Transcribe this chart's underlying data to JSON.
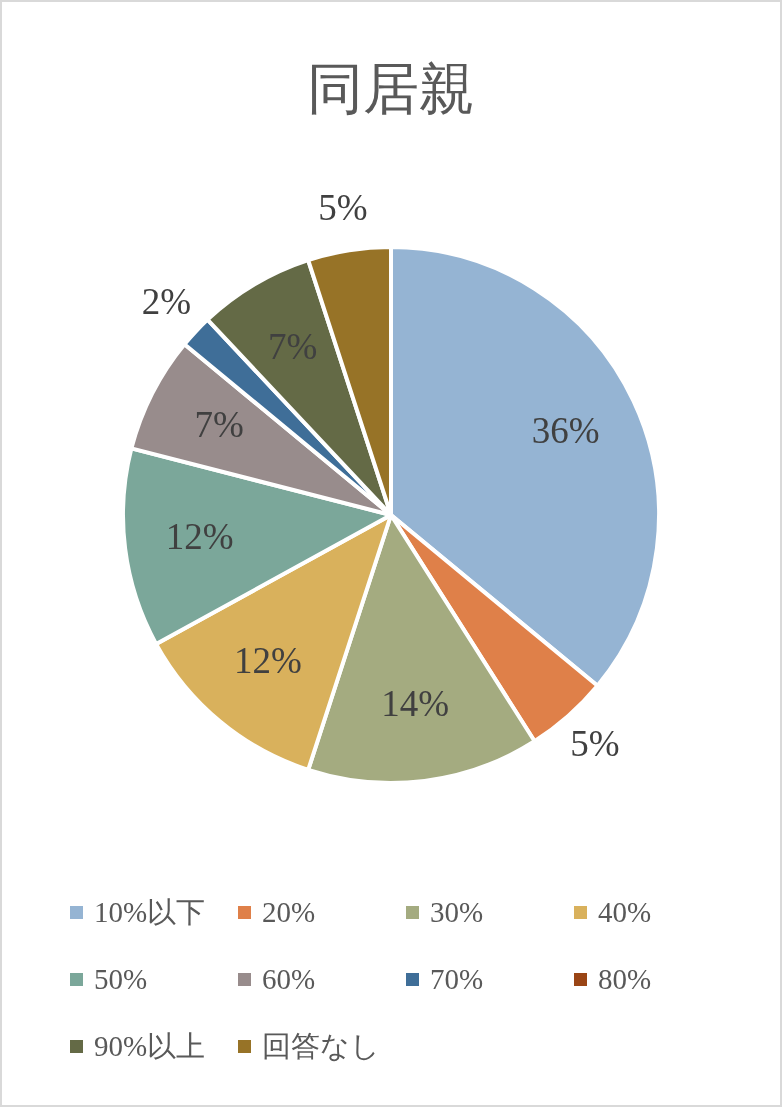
{
  "chart_data": {
    "type": "pie",
    "title": "同居親",
    "categories": [
      "10%以下",
      "20%",
      "30%",
      "40%",
      "50%",
      "60%",
      "70%",
      "80%",
      "90%以上",
      "回答なし"
    ],
    "values": [
      36,
      5,
      14,
      12,
      12,
      7,
      2,
      0,
      7,
      5
    ],
    "colors": [
      "#95b4d3",
      "#df8049",
      "#a4ab80",
      "#d9b15c",
      "#7ba79a",
      "#988c8c",
      "#3f6e98",
      "#9a4515",
      "#646a46",
      "#977327"
    ],
    "value_labels": [
      "36%",
      "5%",
      "14%",
      "12%",
      "12%",
      "7%",
      "2%",
      null,
      "7%",
      "5%"
    ],
    "legend": "bottom"
  }
}
